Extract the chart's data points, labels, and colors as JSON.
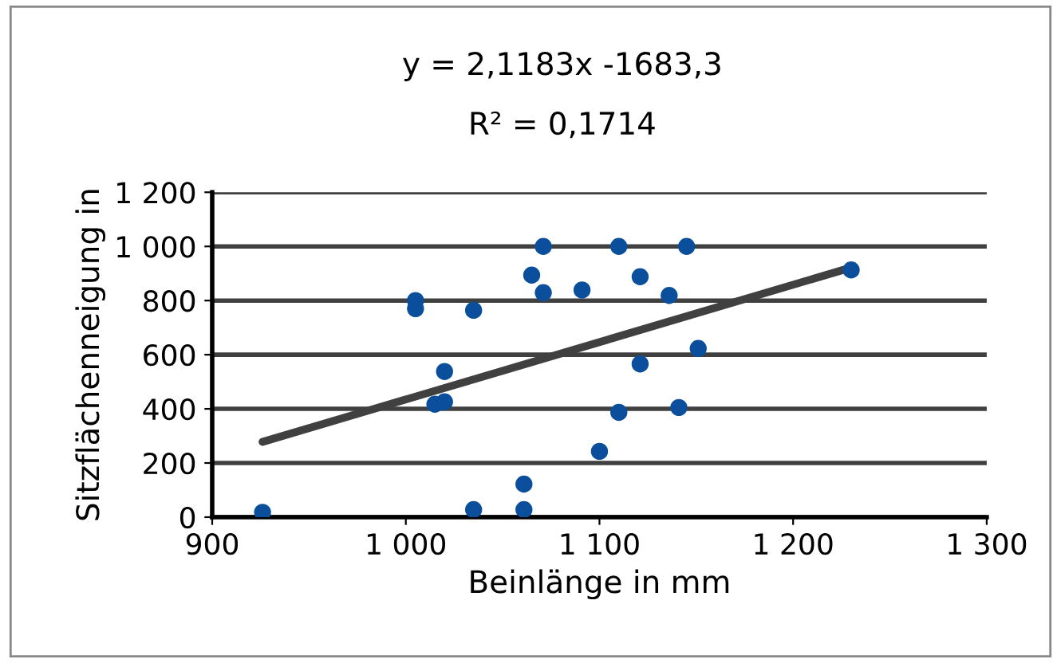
{
  "chart_data": {
    "type": "scatter",
    "xlabel": "Beinlänge in mm",
    "ylabel": "Sitzflächenneigung in",
    "annotations": [
      "y = 2,1183x -1683,3",
      "R² = 0,1714"
    ],
    "series": [
      {
        "color": "#0b4f9c",
        "marker": "circle",
        "x": [
          926,
          1005,
          1005,
          1015,
          1020,
          1020,
          1035,
          1035,
          1061,
          1061,
          1065,
          1071,
          1071,
          1091,
          1100,
          1110,
          1110,
          1121,
          1121,
          1136,
          1141,
          1145,
          1151,
          1230
        ],
        "values": [
          18,
          800,
          770,
          417,
          426,
          538,
          764,
          28,
          28,
          122,
          894,
          1000,
          829,
          839,
          243,
          1000,
          387,
          888,
          566,
          819,
          405,
          1000,
          623,
          913
        ]
      },
      {
        "type": "line",
        "color": "#404040",
        "marker": "none",
        "line_style": "solid",
        "x": [
          926,
          1230
        ],
        "values": [
          278,
          922
        ]
      }
    ],
    "xlim": [
      900,
      1300
    ],
    "ylim": [
      0,
      1200
    ],
    "xticks": [
      900,
      {
        "value": 1000,
        "label": "1 000"
      },
      {
        "value": 1100,
        "label": "1 100"
      },
      {
        "value": 1200,
        "label": "1 200"
      },
      {
        "value": 1300,
        "label": "1 300"
      }
    ],
    "yticks": [
      0,
      200,
      400,
      600,
      800,
      {
        "value": 1000,
        "label": "1 000"
      },
      {
        "value": 1200,
        "label": "1 200"
      }
    ],
    "grid": "y",
    "legend": false
  }
}
